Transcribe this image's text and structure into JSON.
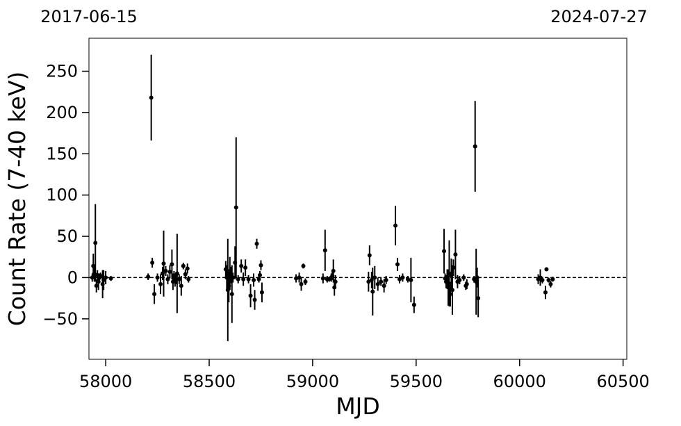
{
  "chart_data": {
    "type": "errorbar_scatter",
    "xlabel": "MJD",
    "ylabel": "Count Rate (7-40 keV)",
    "xlim": [
      57919,
      60518
    ],
    "ylim": [
      -99,
      290
    ],
    "xticks": [
      58000,
      58500,
      59000,
      59500,
      60000,
      60500
    ],
    "yticks": [
      {
        "value": -50,
        "label": "−50"
      },
      0,
      50,
      100,
      150,
      200,
      250
    ],
    "top_xticks": [
      {
        "value": 57919,
        "label": "2017-06-15"
      },
      {
        "value": 60518,
        "label": "2024-07-27"
      }
    ],
    "hline": 0,
    "color": "#000000",
    "series": [
      {
        "x": [
          57935,
          57940,
          57945,
          57950,
          57955,
          57960,
          57965,
          57970,
          57975,
          57985,
          57990,
          58000,
          58025,
          58205,
          58220,
          58225,
          58235,
          58250,
          58265,
          58275,
          58280,
          58290,
          58300,
          58310,
          58320,
          58325,
          58330,
          58335,
          58340,
          58345,
          58355,
          58365,
          58375,
          58385,
          58395,
          58400,
          58580,
          58585,
          58590,
          58595,
          58600,
          58605,
          58610,
          58615,
          58625,
          58630,
          58640,
          58655,
          58665,
          58675,
          58690,
          58700,
          58715,
          58720,
          58730,
          58740,
          58745,
          58750,
          58755,
          58920,
          58935,
          58945,
          58955,
          58965,
          59050,
          59060,
          59070,
          59080,
          59090,
          59095,
          59100,
          59105,
          59110,
          59270,
          59275,
          59285,
          59290,
          59300,
          59315,
          59330,
          59345,
          59355,
          59400,
          59410,
          59420,
          59435,
          59460,
          59475,
          59490,
          59635,
          59640,
          59645,
          59650,
          59655,
          59660,
          59665,
          59670,
          59675,
          59680,
          59690,
          59700,
          59710,
          59730,
          59740,
          59745,
          59780,
          59785,
          59790,
          59795,
          59800,
          60090,
          60100,
          60110,
          60125,
          60130,
          60140,
          60150,
          60160
        ],
        "values": [
          0,
          14,
          5,
          42,
          -10,
          3,
          -5,
          0,
          2,
          -8,
          -3,
          0,
          -1,
          1,
          218,
          18,
          -20,
          0,
          -8,
          5,
          17,
          8,
          -2,
          7,
          16,
          -5,
          2,
          -3,
          -2,
          5,
          -2,
          -10,
          14,
          4,
          11,
          -2,
          10,
          0,
          -15,
          -10,
          5,
          3,
          -20,
          0,
          18,
          85,
          -2,
          14,
          -2,
          12,
          -2,
          -22,
          -3,
          -27,
          41,
          -2,
          3,
          15,
          -18,
          -1,
          0,
          -8,
          14,
          -5,
          -1,
          33,
          -2,
          -2,
          0,
          2,
          8,
          -12,
          -5,
          -5,
          27,
          -3,
          -17,
          0,
          -8,
          -5,
          -10,
          -3,
          63,
          16,
          -2,
          0,
          -2,
          -3,
          -33,
          32,
          -1,
          -5,
          0,
          -12,
          5,
          -20,
          3,
          -15,
          12,
          28,
          -5,
          -3,
          0,
          -10,
          -8,
          -2,
          159,
          -5,
          0,
          -25,
          -2,
          0,
          -3,
          -18,
          10,
          -3,
          -8,
          -2
        ],
        "errors": [
          5,
          15,
          10,
          47,
          8,
          6,
          10,
          5,
          4,
          17,
          12,
          8,
          3,
          4,
          52,
          6,
          12,
          5,
          12,
          8,
          40,
          6,
          6,
          8,
          18,
          10,
          6,
          8,
          6,
          48,
          6,
          12,
          4,
          6,
          6,
          4,
          10,
          15,
          62,
          20,
          20,
          10,
          35,
          6,
          20,
          85,
          5,
          8,
          8,
          10,
          5,
          14,
          8,
          12,
          6,
          4,
          5,
          6,
          12,
          5,
          6,
          8,
          3,
          4,
          6,
          25,
          4,
          3,
          5,
          5,
          14,
          10,
          8,
          12,
          12,
          10,
          29,
          14,
          8,
          5,
          8,
          5,
          24,
          8,
          5,
          5,
          4,
          27,
          10,
          27,
          6,
          8,
          10,
          22,
          40,
          15,
          20,
          30,
          10,
          30,
          8,
          5,
          4,
          5,
          6,
          4,
          55,
          40,
          12,
          23,
          6,
          10,
          4,
          8,
          2,
          3,
          4,
          3
        ]
      }
    ]
  }
}
